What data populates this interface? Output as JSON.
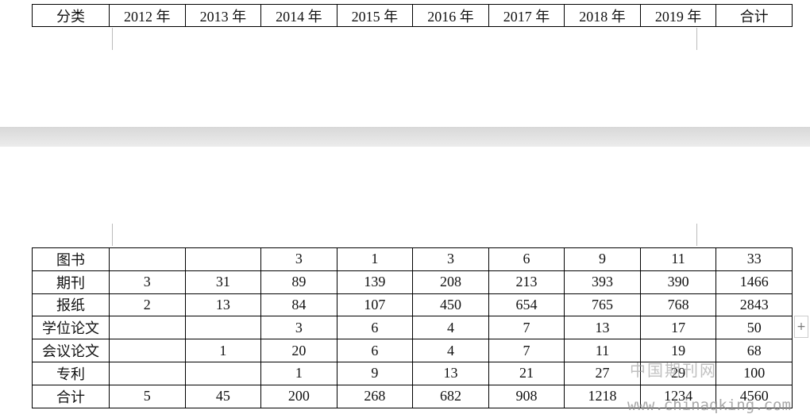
{
  "header_table": {
    "header": [
      "分类",
      "2012 年",
      "2013 年",
      "2014 年",
      "2015 年",
      "2016 年",
      "2017 年",
      "2018 年",
      "2019 年",
      "合计"
    ]
  },
  "body_table": {
    "rows": [
      [
        "图书",
        null,
        null,
        3,
        1,
        3,
        6,
        9,
        11,
        33
      ],
      [
        "期刊",
        3,
        31,
        89,
        139,
        208,
        213,
        393,
        390,
        1466
      ],
      [
        "报纸",
        2,
        13,
        84,
        107,
        450,
        654,
        765,
        768,
        2843
      ],
      [
        "学位论文",
        null,
        null,
        3,
        6,
        4,
        7,
        13,
        17,
        50
      ],
      [
        "会议论文",
        null,
        1,
        20,
        6,
        4,
        7,
        11,
        19,
        68
      ],
      [
        "专利",
        null,
        null,
        1,
        9,
        13,
        21,
        27,
        29,
        100
      ],
      [
        "合计",
        5,
        45,
        200,
        268,
        682,
        908,
        1218,
        1234,
        4560
      ]
    ]
  },
  "watermark": {
    "title": "中国期刊网",
    "url": "www.chinaqking.com"
  }
}
